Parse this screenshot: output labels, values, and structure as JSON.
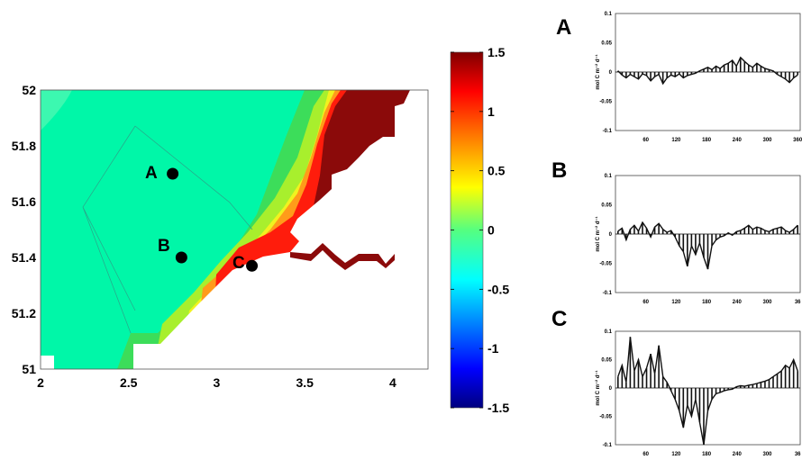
{
  "chart_data": [
    {
      "type": "heatmap",
      "subtype": "filled-contour-map",
      "xlim": [
        2,
        4.2
      ],
      "ylim": [
        51,
        52
      ],
      "x_ticks": [
        "2",
        "2.5",
        "3",
        "3.5",
        "4"
      ],
      "y_ticks": [
        "51",
        "51.2",
        "51.4",
        "51.6",
        "51.8",
        "52"
      ],
      "colorbar": {
        "range": [
          -1.5,
          1.5
        ],
        "ticks": [
          "1.5",
          "1",
          "0.5",
          "0",
          "-0.5",
          "-1",
          "-1.5"
        ],
        "colormap": "jet"
      },
      "sites": [
        {
          "label": "A",
          "x": 2.75,
          "y": 51.7
        },
        {
          "label": "B",
          "x": 2.8,
          "y": 51.4
        },
        {
          "label": "C",
          "x": 3.2,
          "y": 51.37
        }
      ]
    },
    {
      "type": "line",
      "panel": "A",
      "ylabel": "mol C m⁻² d⁻¹",
      "ylim": [
        -0.1,
        0.1
      ],
      "y_ticks": [
        "0.1",
        "0.05",
        "0",
        "-0.05",
        "-0.1"
      ],
      "xlim": [
        0,
        365
      ],
      "x_ticks": [
        "60",
        "120",
        "180",
        "240",
        "300",
        "360"
      ],
      "series": [
        {
          "values": [
            0.002,
            -0.005,
            -0.01,
            -0.004,
            -0.008,
            -0.012,
            -0.003,
            -0.006,
            -0.015,
            -0.008,
            -0.004,
            -0.02,
            -0.01,
            -0.005,
            -0.008,
            -0.003,
            -0.01,
            -0.006,
            -0.004,
            -0.002,
            0.002,
            0.005,
            0.008,
            0.004,
            0.01,
            0.006,
            0.012,
            0.015,
            0.02,
            0.01,
            0.025,
            0.018,
            0.012,
            0.008,
            0.015,
            0.01,
            0.006,
            0.004,
            0.002,
            -0.004,
            -0.008,
            -0.012,
            -0.018,
            -0.01,
            -0.005
          ]
        }
      ]
    },
    {
      "type": "line",
      "panel": "B",
      "ylabel": "mol C m⁻² d⁻¹",
      "ylim": [
        -0.1,
        0.1
      ],
      "y_ticks": [
        "0.1",
        "0.05",
        "0",
        "-0.05",
        "-0.1"
      ],
      "xlim": [
        0,
        365
      ],
      "x_ticks": [
        "60",
        "120",
        "180",
        "240",
        "300",
        "36"
      ],
      "series": [
        {
          "values": [
            0.005,
            0.01,
            -0.01,
            0.008,
            0.015,
            0.005,
            0.02,
            0.01,
            -0.005,
            0.012,
            0.018,
            0.008,
            0.003,
            0.006,
            -0.005,
            -0.02,
            -0.03,
            -0.055,
            -0.02,
            -0.035,
            -0.015,
            -0.04,
            -0.06,
            -0.02,
            -0.01,
            -0.005,
            -0.003,
            0.002,
            -0.002,
            0.004,
            0.006,
            0.01,
            0.015,
            0.008,
            0.012,
            0.01,
            0.006,
            0.004,
            0.008,
            0.01,
            0.012,
            0.006,
            0.003,
            0.008,
            0.015
          ]
        }
      ]
    },
    {
      "type": "line",
      "panel": "C",
      "ylabel": "mol C m⁻² d⁻¹",
      "ylim": [
        -0.1,
        0.1
      ],
      "y_ticks": [
        "0.1",
        "0.05",
        "0",
        "-0.05",
        "-0.1"
      ],
      "xlim": [
        0,
        365
      ],
      "x_ticks": [
        "60",
        "120",
        "180",
        "240",
        "300",
        "36"
      ],
      "series": [
        {
          "values": [
            0.02,
            0.04,
            0.01,
            0.09,
            0.03,
            0.05,
            0.02,
            0.035,
            0.06,
            0.025,
            0.075,
            0.02,
            0.01,
            -0.005,
            -0.02,
            -0.04,
            -0.07,
            -0.03,
            -0.05,
            -0.02,
            -0.06,
            -0.1,
            -0.04,
            -0.02,
            -0.01,
            -0.008,
            -0.005,
            -0.003,
            -0.002,
            0.002,
            0.004,
            0.003,
            0.005,
            0.006,
            0.008,
            0.01,
            0.012,
            0.015,
            0.02,
            0.025,
            0.03,
            0.04,
            0.035,
            0.05,
            0.03
          ]
        }
      ]
    }
  ],
  "map_labels": {
    "site_a": "A",
    "site_b": "B",
    "site_c": "C"
  },
  "panels": {
    "a_letter": "A",
    "b_letter": "B",
    "c_letter": "C"
  }
}
